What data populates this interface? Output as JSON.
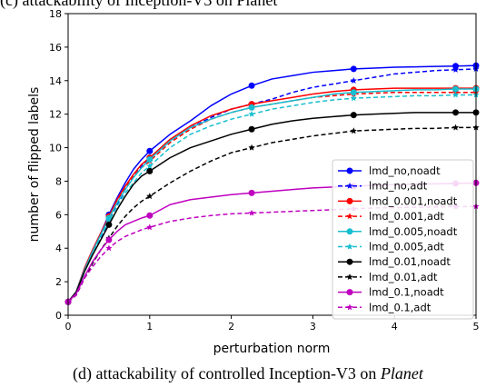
{
  "caption": {
    "top_text": "(c) attackability of Inception-V3 on Planet",
    "prefix": "(d) attackability of controlled Inception-V3 on ",
    "dataset": "Planet"
  },
  "chart_data": {
    "type": "line",
    "xlabel": "perturbation norm",
    "ylabel": "number of flipped labels",
    "xlim": [
      0,
      5
    ],
    "ylim": [
      0,
      18
    ],
    "xticks": [
      0,
      1,
      2,
      3,
      4,
      5
    ],
    "yticks": [
      0,
      2,
      4,
      6,
      8,
      10,
      12,
      14,
      16,
      18
    ],
    "grid": false,
    "legend_position": "lower-right",
    "x": [
      0,
      0.1,
      0.2,
      0.3,
      0.4,
      0.5,
      0.6,
      0.7,
      0.8,
      0.9,
      1.0,
      1.25,
      1.5,
      1.75,
      2.0,
      2.25,
      2.5,
      2.75,
      3.0,
      3.25,
      3.5,
      3.75,
      4.0,
      4.25,
      4.5,
      4.75,
      5.0
    ],
    "series": [
      {
        "name": "lmd_no,noadt",
        "color": "#0000ff",
        "dash": "solid",
        "marker": "circle",
        "values": [
          0.8,
          1.4,
          2.8,
          3.9,
          4.9,
          6.0,
          7.0,
          7.9,
          8.7,
          9.3,
          9.8,
          10.8,
          11.6,
          12.5,
          13.2,
          13.7,
          14.1,
          14.3,
          14.5,
          14.6,
          14.7,
          14.75,
          14.8,
          14.82,
          14.85,
          14.87,
          14.9
        ]
      },
      {
        "name": "lmd_no,adt",
        "color": "#0000ff",
        "dash": "dashed",
        "marker": "star",
        "values": [
          0.8,
          1.3,
          2.6,
          3.7,
          4.6,
          5.6,
          6.6,
          7.5,
          8.3,
          8.9,
          9.4,
          10.4,
          11.2,
          11.8,
          12.3,
          12.6,
          12.9,
          13.3,
          13.6,
          13.8,
          14.0,
          14.2,
          14.4,
          14.5,
          14.6,
          14.65,
          14.7
        ]
      },
      {
        "name": "lmd_0.001,noadt",
        "color": "#ff0000",
        "dash": "solid",
        "marker": "circle",
        "values": [
          0.8,
          1.4,
          2.8,
          3.9,
          4.9,
          5.9,
          6.9,
          7.7,
          8.4,
          9.0,
          9.4,
          10.5,
          11.3,
          11.9,
          12.3,
          12.6,
          12.8,
          13.0,
          13.2,
          13.35,
          13.45,
          13.5,
          13.55,
          13.55,
          13.55,
          13.55,
          13.55
        ]
      },
      {
        "name": "lmd_0.001,adt",
        "color": "#ff0000",
        "dash": "dashed",
        "marker": "star",
        "values": [
          0.8,
          1.35,
          2.7,
          3.8,
          4.8,
          5.8,
          6.8,
          7.6,
          8.3,
          8.8,
          9.2,
          10.3,
          11.1,
          11.7,
          12.1,
          12.4,
          12.6,
          12.8,
          13.0,
          13.1,
          13.2,
          13.25,
          13.3,
          13.3,
          13.3,
          13.3,
          13.3
        ]
      },
      {
        "name": "lmd_0.005,noadt",
        "color": "#17becf",
        "dash": "solid",
        "marker": "circle",
        "values": [
          0.8,
          1.4,
          2.7,
          3.8,
          4.8,
          5.8,
          6.7,
          7.5,
          8.2,
          8.8,
          9.3,
          10.4,
          11.2,
          11.7,
          12.1,
          12.4,
          12.6,
          12.8,
          13.0,
          13.2,
          13.3,
          13.35,
          13.4,
          13.45,
          13.45,
          13.5,
          13.5
        ]
      },
      {
        "name": "lmd_0.005,adt",
        "color": "#17becf",
        "dash": "dashed",
        "marker": "star",
        "values": [
          0.8,
          1.3,
          2.6,
          3.7,
          4.7,
          5.6,
          6.5,
          7.3,
          7.9,
          8.5,
          8.9,
          10.0,
          10.8,
          11.3,
          11.7,
          12.0,
          12.3,
          12.5,
          12.7,
          12.85,
          12.95,
          13.0,
          13.05,
          13.1,
          13.1,
          13.15,
          13.15
        ]
      },
      {
        "name": "lmd_0.01,noadt",
        "color": "#000000",
        "dash": "solid",
        "marker": "circle",
        "values": [
          0.8,
          1.4,
          2.6,
          3.6,
          4.5,
          5.4,
          6.3,
          7.1,
          7.8,
          8.3,
          8.6,
          9.4,
          10.0,
          10.4,
          10.8,
          11.1,
          11.4,
          11.6,
          11.75,
          11.85,
          11.95,
          12.0,
          12.05,
          12.1,
          12.1,
          12.1,
          12.1
        ]
      },
      {
        "name": "lmd_0.01,adt",
        "color": "#000000",
        "dash": "dashed",
        "marker": "star",
        "values": [
          0.8,
          1.2,
          2.2,
          3.1,
          3.9,
          4.6,
          5.3,
          5.9,
          6.4,
          6.8,
          7.1,
          7.9,
          8.6,
          9.2,
          9.7,
          10.0,
          10.3,
          10.5,
          10.7,
          10.85,
          11.0,
          11.05,
          11.1,
          11.15,
          11.15,
          11.2,
          11.2
        ]
      },
      {
        "name": "lmd_0.1,noadt",
        "color": "#bf00bf",
        "dash": "solid",
        "marker": "circle",
        "values": [
          0.8,
          1.3,
          2.3,
          3.2,
          3.9,
          4.5,
          5.0,
          5.4,
          5.6,
          5.8,
          5.95,
          6.6,
          6.9,
          7.05,
          7.2,
          7.3,
          7.4,
          7.5,
          7.6,
          7.65,
          7.7,
          7.75,
          7.8,
          7.82,
          7.84,
          7.86,
          7.9
        ]
      },
      {
        "name": "lmd_0.1,adt",
        "color": "#bf00bf",
        "dash": "dashed",
        "marker": "star",
        "values": [
          0.8,
          1.2,
          2.2,
          2.9,
          3.5,
          4.0,
          4.4,
          4.7,
          4.9,
          5.1,
          5.25,
          5.6,
          5.8,
          5.95,
          6.05,
          6.1,
          6.15,
          6.2,
          6.25,
          6.3,
          6.35,
          6.4,
          6.42,
          6.44,
          6.46,
          6.48,
          6.5
        ]
      }
    ]
  }
}
